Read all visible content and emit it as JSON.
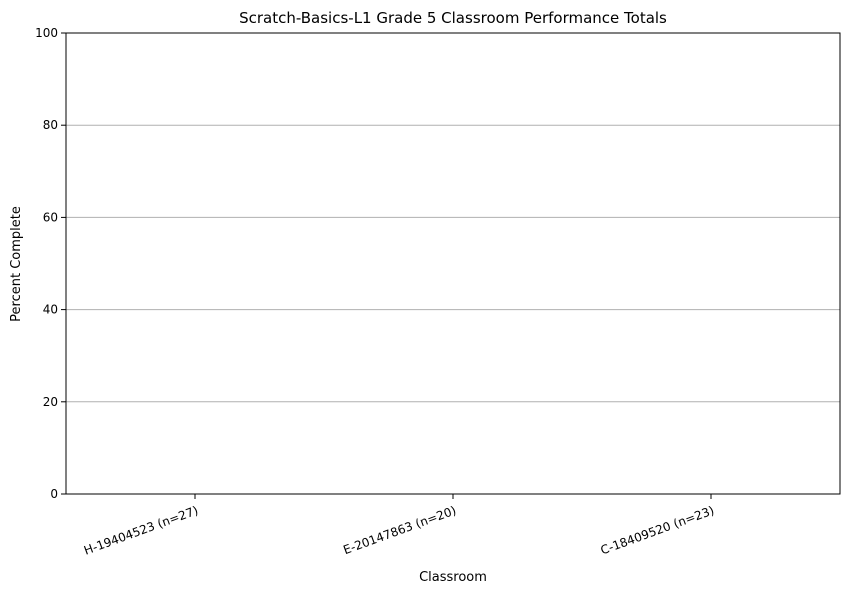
{
  "chart_data": {
    "type": "bar",
    "title": "Scratch-Basics-L1 Grade 5 Classroom Performance Totals",
    "xlabel": "Classroom",
    "ylabel": "Percent Complete",
    "categories": [
      "H-19404523 (n=27)",
      "E-20147863 (n=20)",
      "C-18409520 (n=23)"
    ],
    "values": [
      0,
      0,
      0
    ],
    "ylim": [
      0,
      100
    ],
    "yticks": [
      0,
      20,
      40,
      60,
      80,
      100
    ],
    "grid": "y-major",
    "legend": "none",
    "x_tick_rotation_deg": 20,
    "bar_color": "#1f77b4"
  }
}
